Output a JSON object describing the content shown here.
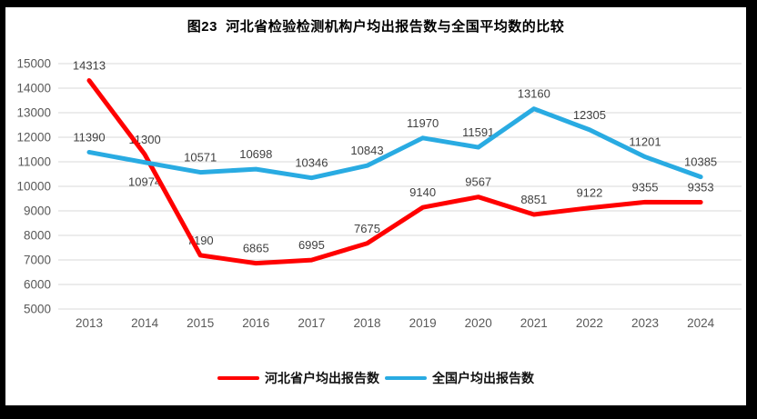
{
  "title": "图23  河北省检验检测机构户均出报告数与全国平均数的比较",
  "chart_data": {
    "type": "line",
    "title": "图23  河北省检验检测机构户均出报告数与全国平均数的比较",
    "categories": [
      "2013",
      "2014",
      "2015",
      "2016",
      "2017",
      "2018",
      "2019",
      "2020",
      "2021",
      "2022",
      "2023",
      "2024"
    ],
    "series": [
      {
        "name": "河北省户均出报告数",
        "color": "#FF0000",
        "values": [
          14313,
          11300,
          7190,
          6865,
          6995,
          7675,
          9140,
          9567,
          8851,
          9122,
          9355,
          9353
        ]
      },
      {
        "name": "全国户均出报告数",
        "color": "#29ABE2",
        "values": [
          11390,
          10974,
          10571,
          10698,
          10346,
          10843,
          11970,
          11591,
          13160,
          12305,
          11201,
          10385
        ]
      }
    ],
    "ylim": [
      5000,
      15000
    ],
    "ytick_step": 1000,
    "grid": "horizontal",
    "legend_position": "bottom",
    "colors": {
      "gridline": "#D9D9D9",
      "axis_text": "#595959",
      "data_label_text": "#404040"
    }
  }
}
